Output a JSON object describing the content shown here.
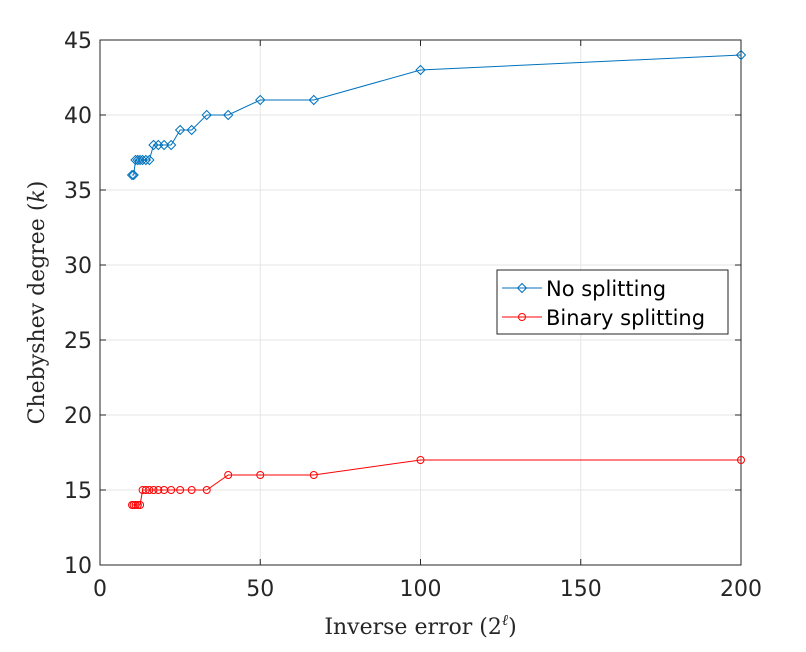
{
  "chart_data": {
    "type": "line",
    "title": "",
    "xlabel": "Inverse error (2",
    "xlabel_sup": "ℓ",
    "xlabel_close": ")",
    "ylabel": "Chebyshev degree (",
    "ylabel_var": "k",
    "ylabel_close": ")",
    "xlim": [
      0,
      200
    ],
    "ylim": [
      10,
      45
    ],
    "xticks": [
      0,
      50,
      100,
      150,
      200
    ],
    "yticks": [
      10,
      15,
      20,
      25,
      30,
      35,
      40,
      45
    ],
    "grid": true,
    "legend_position": "right-middle",
    "series": [
      {
        "name": "No splitting",
        "color": "#0072BD",
        "marker": "diamond",
        "x": [
          10,
          10.5,
          11.1,
          11.8,
          12.5,
          13.3,
          14.3,
          15.4,
          16.7,
          18.2,
          20,
          22.2,
          25,
          28.6,
          33.3,
          40,
          50,
          66.7,
          100,
          200
        ],
        "y": [
          36,
          36,
          37,
          37,
          37,
          37,
          37,
          37,
          38,
          38,
          38,
          38,
          39,
          39,
          40,
          40,
          41,
          41,
          43,
          44
        ]
      },
      {
        "name": "Binary splitting",
        "color": "#FF0000",
        "marker": "circle",
        "x": [
          10,
          10.5,
          11.1,
          11.8,
          12.5,
          13.3,
          14.3,
          15.4,
          16.7,
          18.2,
          20,
          22.2,
          25,
          28.6,
          33.3,
          40,
          50,
          66.7,
          100,
          200
        ],
        "y": [
          14,
          14,
          14,
          14,
          14,
          15,
          15,
          15,
          15,
          15,
          15,
          15,
          15,
          15,
          15,
          16,
          16,
          16,
          17,
          17
        ]
      }
    ]
  }
}
